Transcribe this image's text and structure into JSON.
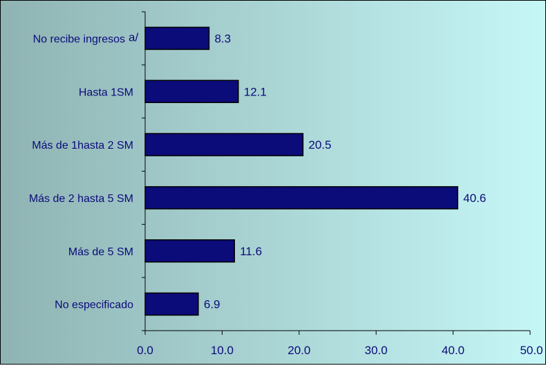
{
  "chart_data": {
    "type": "bar",
    "orientation": "horizontal",
    "title": "",
    "xlabel": "",
    "ylabel": "",
    "categories": [
      "No recibe ingresos",
      "Hasta 1SM",
      "Más de 1hasta 2 SM",
      "Más de 2 hasta 5 SM",
      "Más de 5 SM",
      "No especificado"
    ],
    "category_notes": [
      "a/",
      "",
      "",
      "",
      "",
      ""
    ],
    "values": [
      8.3,
      12.1,
      20.5,
      40.6,
      11.6,
      6.9
    ],
    "value_labels": [
      "8.3",
      "12.1",
      "20.5",
      "40.6",
      "11.6",
      "6.9"
    ],
    "xlim": [
      0,
      50
    ],
    "x_ticks": [
      0,
      10,
      20,
      30,
      40,
      50
    ],
    "x_tick_labels": [
      "0.0",
      "10.0",
      "20.0",
      "30.0",
      "40.0",
      "50.0"
    ],
    "grid": false,
    "legend": "none",
    "colors": {
      "bar_fill": "#0B0B7A",
      "bar_stroke": "#000000",
      "label_text": "#0B0B7A",
      "category_text": "#0B0B7A",
      "axis": "#000000",
      "plot_bg_left": "#8FB3B3",
      "plot_bg_right": "#C6F7F7",
      "frame": "#000000"
    }
  }
}
